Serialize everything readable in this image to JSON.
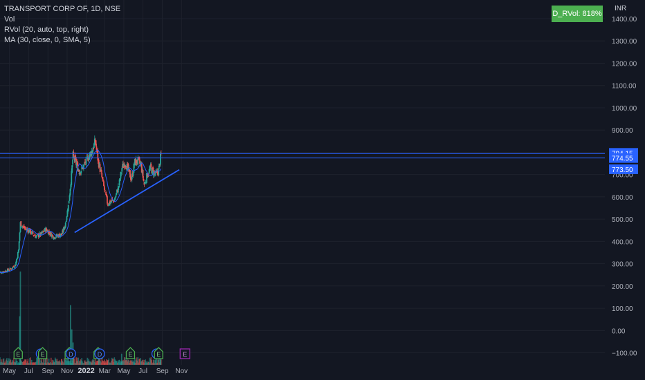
{
  "legend": {
    "symbol": "TRANSPORT CORP OF, 1D, NSE",
    "vol": "Vol",
    "rvol": "RVol (20, auto, top, right)",
    "ma": "MA (30, close, 0, SMA, 5)"
  },
  "rvol_badge": "D_RVol: 818%",
  "currency": "INR",
  "colors": {
    "background": "#131722",
    "grid": "#1e222d",
    "up": "#26a69a",
    "down": "#ef5350",
    "ma": "#2962ff",
    "level_line": "#2962ff",
    "trendline": "#2962ff",
    "axis_text": "#b2b5be",
    "badge_green": "#4caf50",
    "earnings_green": "#4caf50",
    "earnings_purple": "#9c27b0",
    "dividend_blue": "#2962ff"
  },
  "chart_data": {
    "type": "candlestick",
    "y_axis": {
      "unit": "INR",
      "range": [
        -160,
        1440
      ],
      "ticks": [
        1400,
        1300,
        1200,
        1100,
        1000,
        900,
        800,
        700,
        600,
        500,
        400,
        300,
        200,
        100,
        0,
        -100
      ],
      "tick_labels": [
        "1400.00",
        "1300.00",
        "1200.00",
        "1100.00",
        "1000.00",
        "900.00",
        "800.00",
        "700.00",
        "600.00",
        "500.00",
        "400.00",
        "300.00",
        "200.00",
        "100.00",
        "0.00",
        "−100.00"
      ]
    },
    "x_axis": {
      "labels": [
        "May",
        "Jul",
        "Sep",
        "Nov",
        "2022",
        "Mar",
        "May",
        "Jul",
        "Sep",
        "Nov"
      ],
      "bold_label": "2022"
    },
    "price_labels": [
      "794.15",
      "774.55",
      "773.50"
    ],
    "horizontal_levels": [
      794.15,
      774.55
    ],
    "trendline": {
      "from": [
        "2021-11-25",
        440
      ],
      "to": [
        "2022-10-25",
        722
      ]
    },
    "anchors": [
      [
        "2021-03-26",
        258
      ],
      [
        "2021-04-15",
        266
      ],
      [
        "2021-05-05",
        276
      ],
      [
        "2021-05-20",
        295
      ],
      [
        "2021-05-30",
        360
      ],
      [
        "2021-06-05",
        482
      ],
      [
        "2021-06-15",
        462
      ],
      [
        "2021-07-05",
        445
      ],
      [
        "2021-07-25",
        422
      ],
      [
        "2021-08-10",
        432
      ],
      [
        "2021-08-25",
        455
      ],
      [
        "2021-09-05",
        440
      ],
      [
        "2021-09-20",
        420
      ],
      [
        "2021-10-15",
        432
      ],
      [
        "2021-10-25",
        470
      ],
      [
        "2021-11-05",
        560
      ],
      [
        "2021-11-15",
        700
      ],
      [
        "2021-11-20",
        785
      ],
      [
        "2021-12-01",
        745
      ],
      [
        "2021-12-10",
        715
      ],
      [
        "2021-12-20",
        728
      ],
      [
        "2022-01-01",
        762
      ],
      [
        "2022-01-20",
        808
      ],
      [
        "2022-01-30",
        850
      ],
      [
        "2022-02-08",
        762
      ],
      [
        "2022-02-18",
        700
      ],
      [
        "2022-03-01",
        625
      ],
      [
        "2022-03-10",
        570
      ],
      [
        "2022-03-20",
        578
      ],
      [
        "2022-04-01",
        586
      ],
      [
        "2022-04-15",
        650
      ],
      [
        "2022-04-25",
        730
      ],
      [
        "2022-05-05",
        755
      ],
      [
        "2022-05-15",
        720
      ],
      [
        "2022-05-25",
        680
      ],
      [
        "2022-06-05",
        755
      ],
      [
        "2022-06-15",
        762
      ],
      [
        "2022-06-25",
        740
      ],
      [
        "2022-07-05",
        655
      ],
      [
        "2022-07-15",
        700
      ],
      [
        "2022-07-25",
        728
      ],
      [
        "2022-08-05",
        708
      ],
      [
        "2022-08-12",
        700
      ],
      [
        "2022-08-20",
        720
      ],
      [
        "2022-08-26",
        775
      ],
      [
        "2022-08-28",
        794
      ]
    ],
    "ma_period": 30,
    "volume_spikes": [
      [
        "2021-06-05",
        250
      ],
      [
        "2021-06-03",
        130
      ],
      [
        "2021-11-12",
        160
      ],
      [
        "2021-11-16",
        95
      ],
      [
        "2021-11-20",
        60
      ],
      [
        "2022-02-10",
        35
      ],
      [
        "2022-04-24",
        30
      ],
      [
        "2022-08-26",
        28
      ]
    ],
    "events": [
      {
        "label": "E",
        "kind": "earnings",
        "date": "2021-05-29"
      },
      {
        "label": "D",
        "kind": "dividend",
        "date": "2021-08-10"
      },
      {
        "label": "E",
        "kind": "earnings",
        "date": "2021-08-15"
      },
      {
        "label": "E",
        "kind": "earnings",
        "date": "2021-11-08"
      },
      {
        "label": "D",
        "kind": "dividend",
        "date": "2021-11-13"
      },
      {
        "label": "E",
        "kind": "earnings",
        "date": "2022-02-08"
      },
      {
        "label": "D",
        "kind": "dividend",
        "date": "2022-02-13"
      },
      {
        "label": "E",
        "kind": "earnings",
        "date": "2022-05-22"
      },
      {
        "label": "D",
        "kind": "dividend",
        "date": "2022-08-14"
      },
      {
        "label": "E",
        "kind": "earnings",
        "date": "2022-08-20"
      },
      {
        "label": "E",
        "kind": "earnings-upcoming",
        "date": "2022-11-12"
      }
    ]
  }
}
